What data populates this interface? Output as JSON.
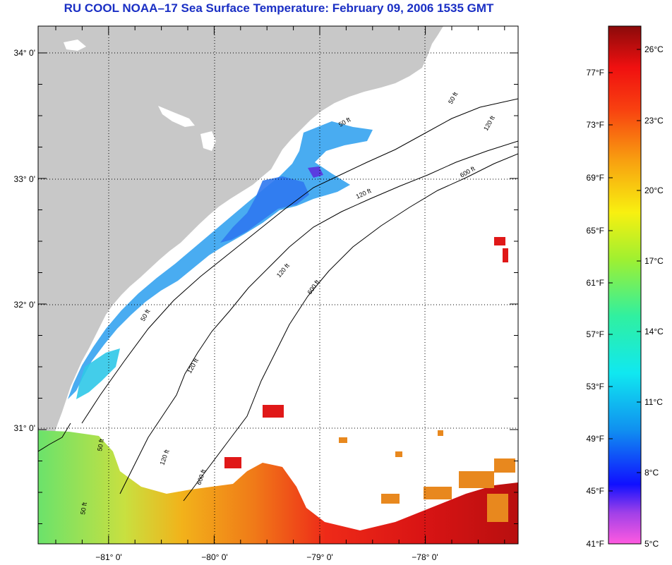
{
  "title": "RU COOL  NOAA–17  Sea Surface Temperature:  February 09, 2006 1535 GMT",
  "map": {
    "lat_labels": [
      "34° 0'",
      "33° 0'",
      "32° 0'",
      "31° 0'"
    ],
    "lon_labels": [
      "−81° 0'",
      "−80° 0'",
      "−79° 0'",
      "−78° 0'"
    ],
    "contour_labels": [
      "50 ft",
      "120 ft",
      "600 ft",
      "50 ft",
      "120 ft",
      "600 ft",
      "120 ft",
      "50 ft",
      "120 ft",
      "600 ft",
      "120 ft",
      "50 ft",
      "50 ft"
    ],
    "colors": {
      "land": "#c8c8c8",
      "ocean": "#ffffff"
    }
  },
  "colorbar": {
    "celsius_labels": [
      "26°C",
      "23°C",
      "20°C",
      "17°C",
      "14°C",
      "11°C",
      "8°C",
      "5°C"
    ],
    "fahrenheit_labels": [
      "77°F",
      "73°F",
      "69°F",
      "65°F",
      "61°F",
      "57°F",
      "53°F",
      "49°F",
      "45°F",
      "41°F"
    ],
    "range_c": [
      5,
      28
    ]
  }
}
